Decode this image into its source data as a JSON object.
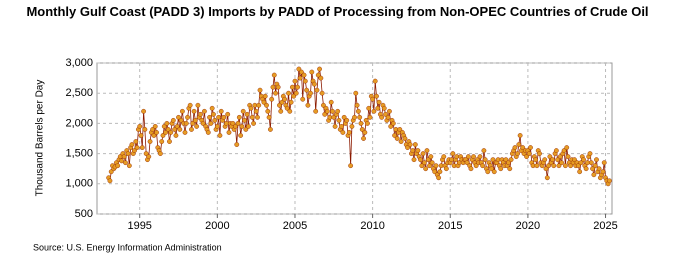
{
  "chart_data": {
    "type": "line",
    "title": "Monthly Gulf Coast (PADD 3) Imports by PADD of Processing from Non-OPEC Countries of Crude Oil",
    "y_label": "Thousand Barrels per Day",
    "source": "Source: U.S. Energy Information Administration",
    "color": "#e69c24",
    "line_color": "#8b1a00",
    "grid": true,
    "xlim": [
      "1992-04",
      "2025-06"
    ],
    "xticks": [
      "1995",
      "2000",
      "2005",
      "2010",
      "2015",
      "2020",
      "2025"
    ],
    "ylim": [
      500,
      3000
    ],
    "yticks": [
      500,
      {
        "value": 1000,
        "label": "1,000"
      },
      {
        "value": 1500,
        "label": "1,500"
      },
      {
        "value": 2000,
        "label": "2,000"
      },
      {
        "value": 2500,
        "label": "2,500"
      },
      {
        "value": 3000,
        "label": "3,000"
      }
    ],
    "x": [
      "1993-01",
      "1993-02",
      "1993-03",
      "1993-04",
      "1993-05",
      "1993-06",
      "1993-07",
      "1993-08",
      "1993-09",
      "1993-10",
      "1993-11",
      "1993-12",
      "1994-01",
      "1994-02",
      "1994-03",
      "1994-04",
      "1994-05",
      "1994-06",
      "1994-07",
      "1994-08",
      "1994-09",
      "1994-10",
      "1994-11",
      "1994-12",
      "1995-01",
      "1995-02",
      "1995-03",
      "1995-04",
      "1995-05",
      "1995-06",
      "1995-07",
      "1995-08",
      "1995-09",
      "1995-10",
      "1995-11",
      "1995-12",
      "1996-01",
      "1996-02",
      "1996-03",
      "1996-04",
      "1996-05",
      "1996-06",
      "1996-07",
      "1996-08",
      "1996-09",
      "1996-10",
      "1996-11",
      "1996-12",
      "1997-01",
      "1997-02",
      "1997-03",
      "1997-04",
      "1997-05",
      "1997-06",
      "1997-07",
      "1997-08",
      "1997-09",
      "1997-10",
      "1997-11",
      "1997-12",
      "1998-01",
      "1998-02",
      "1998-03",
      "1998-04",
      "1998-05",
      "1998-06",
      "1998-07",
      "1998-08",
      "1998-09",
      "1998-10",
      "1998-11",
      "1998-12",
      "1999-01",
      "1999-02",
      "1999-03",
      "1999-04",
      "1999-05",
      "1999-06",
      "1999-07",
      "1999-08",
      "1999-09",
      "1999-10",
      "1999-11",
      "1999-12",
      "2000-01",
      "2000-02",
      "2000-03",
      "2000-04",
      "2000-05",
      "2000-06",
      "2000-07",
      "2000-08",
      "2000-09",
      "2000-10",
      "2000-11",
      "2000-12",
      "2001-01",
      "2001-02",
      "2001-03",
      "2001-04",
      "2001-05",
      "2001-06",
      "2001-07",
      "2001-08",
      "2001-09",
      "2001-10",
      "2001-11",
      "2001-12",
      "2002-01",
      "2002-02",
      "2002-03",
      "2002-04",
      "2002-05",
      "2002-06",
      "2002-07",
      "2002-08",
      "2002-09",
      "2002-10",
      "2002-11",
      "2002-12",
      "2003-01",
      "2003-02",
      "2003-03",
      "2003-04",
      "2003-05",
      "2003-06",
      "2003-07",
      "2003-08",
      "2003-09",
      "2003-10",
      "2003-11",
      "2003-12",
      "2004-01",
      "2004-02",
      "2004-03",
      "2004-04",
      "2004-05",
      "2004-06",
      "2004-07",
      "2004-08",
      "2004-09",
      "2004-10",
      "2004-11",
      "2004-12",
      "2005-01",
      "2005-02",
      "2005-03",
      "2005-04",
      "2005-05",
      "2005-06",
      "2005-07",
      "2005-08",
      "2005-09",
      "2005-10",
      "2005-11",
      "2005-12",
      "2006-01",
      "2006-02",
      "2006-03",
      "2006-04",
      "2006-05",
      "2006-06",
      "2006-07",
      "2006-08",
      "2006-09",
      "2006-10",
      "2006-11",
      "2006-12",
      "2007-01",
      "2007-02",
      "2007-03",
      "2007-04",
      "2007-05",
      "2007-06",
      "2007-07",
      "2007-08",
      "2007-09",
      "2007-10",
      "2007-11",
      "2007-12",
      "2008-01",
      "2008-02",
      "2008-03",
      "2008-04",
      "2008-05",
      "2008-06",
      "2008-07",
      "2008-08",
      "2008-09",
      "2008-10",
      "2008-11",
      "2008-12",
      "2009-01",
      "2009-02",
      "2009-03",
      "2009-04",
      "2009-05",
      "2009-06",
      "2009-07",
      "2009-08",
      "2009-09",
      "2009-10",
      "2009-11",
      "2009-12",
      "2010-01",
      "2010-02",
      "2010-03",
      "2010-04",
      "2010-05",
      "2010-06",
      "2010-07",
      "2010-08",
      "2010-09",
      "2010-10",
      "2010-11",
      "2010-12",
      "2011-01",
      "2011-02",
      "2011-03",
      "2011-04",
      "2011-05",
      "2011-06",
      "2011-07",
      "2011-08",
      "2011-09",
      "2011-10",
      "2011-11",
      "2011-12",
      "2012-01",
      "2012-02",
      "2012-03",
      "2012-04",
      "2012-05",
      "2012-06",
      "2012-07",
      "2012-08",
      "2012-09",
      "2012-10",
      "2012-11",
      "2012-12",
      "2013-01",
      "2013-02",
      "2013-03",
      "2013-04",
      "2013-05",
      "2013-06",
      "2013-07",
      "2013-08",
      "2013-09",
      "2013-10",
      "2013-11",
      "2013-12",
      "2014-01",
      "2014-02",
      "2014-03",
      "2014-04",
      "2014-05",
      "2014-06",
      "2014-07",
      "2014-08",
      "2014-09",
      "2014-10",
      "2014-11",
      "2014-12",
      "2015-01",
      "2015-02",
      "2015-03",
      "2015-04",
      "2015-05",
      "2015-06",
      "2015-07",
      "2015-08",
      "2015-09",
      "2015-10",
      "2015-11",
      "2015-12",
      "2016-01",
      "2016-02",
      "2016-03",
      "2016-04",
      "2016-05",
      "2016-06",
      "2016-07",
      "2016-08",
      "2016-09",
      "2016-10",
      "2016-11",
      "2016-12",
      "2017-01",
      "2017-02",
      "2017-03",
      "2017-04",
      "2017-05",
      "2017-06",
      "2017-07",
      "2017-08",
      "2017-09",
      "2017-10",
      "2017-11",
      "2017-12",
      "2018-01",
      "2018-02",
      "2018-03",
      "2018-04",
      "2018-05",
      "2018-06",
      "2018-07",
      "2018-08",
      "2018-09",
      "2018-10",
      "2018-11",
      "2018-12",
      "2019-01",
      "2019-02",
      "2019-03",
      "2019-04",
      "2019-05",
      "2019-06",
      "2019-07",
      "2019-08",
      "2019-09",
      "2019-10",
      "2019-11",
      "2019-12",
      "2020-01",
      "2020-02",
      "2020-03",
      "2020-04",
      "2020-05",
      "2020-06",
      "2020-07",
      "2020-08",
      "2020-09",
      "2020-10",
      "2020-11",
      "2020-12",
      "2021-01",
      "2021-02",
      "2021-03",
      "2021-04",
      "2021-05",
      "2021-06",
      "2021-07",
      "2021-08",
      "2021-09",
      "2021-10",
      "2021-11",
      "2021-12",
      "2022-01",
      "2022-02",
      "2022-03",
      "2022-04",
      "2022-05",
      "2022-06",
      "2022-07",
      "2022-08",
      "2022-09",
      "2022-10",
      "2022-11",
      "2022-12",
      "2023-01",
      "2023-02",
      "2023-03",
      "2023-04",
      "2023-05",
      "2023-06",
      "2023-07",
      "2023-08",
      "2023-09",
      "2023-10",
      "2023-11",
      "2023-12",
      "2024-01",
      "2024-02",
      "2024-03",
      "2024-04",
      "2024-05",
      "2024-06",
      "2024-07",
      "2024-08",
      "2024-09",
      "2024-10",
      "2024-11",
      "2024-12",
      "2025-01",
      "2025-02",
      "2025-03",
      "2025-04"
    ],
    "values": [
      1100,
      1050,
      1200,
      1300,
      1250,
      1280,
      1350,
      1300,
      1400,
      1450,
      1380,
      1500,
      1450,
      1350,
      1550,
      1500,
      1300,
      1600,
      1650,
      1500,
      1550,
      1700,
      1600,
      1900,
      1950,
      1800,
      1600,
      2200,
      1900,
      1500,
      1400,
      1450,
      1700,
      1850,
      1900,
      1800,
      1950,
      1850,
      1600,
      1550,
      1500,
      1700,
      1800,
      1950,
      1850,
      2000,
      1900,
      1700,
      1850,
      2000,
      2050,
      1900,
      1800,
      1950,
      2100,
      1900,
      2050,
      2200,
      2000,
      1850,
      2000,
      2100,
      2250,
      2300,
      1900,
      2000,
      2200,
      2050,
      1950,
      2300,
      2100,
      2150,
      2050,
      2000,
      2200,
      1950,
      1900,
      1850,
      2100,
      2000,
      2250,
      2150,
      2050,
      1900,
      1950,
      2100,
      1800,
      2200,
      2050,
      2100,
      1950,
      2000,
      2150,
      1850,
      2000,
      1950,
      2000,
      1900,
      1950,
      1650,
      2000,
      2100,
      1800,
      1950,
      2200,
      2050,
      1900,
      2150,
      1950,
      2300,
      2250,
      2100,
      2000,
      2300,
      2200,
      2100,
      2300,
      2550,
      2450,
      2400,
      2350,
      2450,
      2300,
      2200,
      2100,
      1900,
      2400,
      2600,
      2800,
      2500,
      2650,
      2600,
      2300,
      2200,
      2350,
      2450,
      2400,
      2300,
      2250,
      2500,
      2200,
      2350,
      2600,
      2450,
      2700,
      2500,
      2600,
      2900,
      2750,
      2850,
      2400,
      2800,
      2700,
      2550,
      2300,
      2450,
      2500,
      2850,
      2700,
      2650,
      2200,
      2550,
      2800,
      2900,
      2750,
      2500,
      2300,
      2150,
      2250,
      2200,
      2050,
      2100,
      2350,
      2200,
      2100,
      1950,
      2150,
      2200,
      2050,
      1900,
      1950,
      1850,
      2100,
      2000,
      2050,
      1800,
      1850,
      1300,
      1950,
      2050,
      2100,
      2500,
      2300,
      2200,
      2100,
      2000,
      1900,
      1750,
      1850,
      2050,
      2000,
      2250,
      2100,
      2450,
      2400,
      2200,
      2700,
      2450,
      2250,
      2350,
      2150,
      2100,
      2300,
      2250,
      2150,
      2050,
      2100,
      2200,
      1950,
      2050,
      2000,
      1800,
      1900,
      1750,
      1850,
      1900,
      1700,
      1850,
      1800,
      1750,
      1650,
      1600,
      1700,
      1650,
      1500,
      1550,
      1400,
      1650,
      1500,
      1550,
      1450,
      1400,
      1300,
      1500,
      1350,
      1250,
      1550,
      1400,
      1300,
      1450,
      1350,
      1250,
      1200,
      1300,
      1150,
      1100,
      1200,
      1300,
      1400,
      1450,
      1300,
      1250,
      1350,
      1400,
      1350,
      1400,
      1500,
      1300,
      1400,
      1450,
      1300,
      1350,
      1450,
      1400,
      1350,
      1400,
      1400,
      1350,
      1450,
      1300,
      1250,
      1400,
      1450,
      1350,
      1300,
      1400,
      1350,
      1450,
      1350,
      1300,
      1550,
      1400,
      1250,
      1200,
      1350,
      1300,
      1250,
      1400,
      1200,
      1350,
      1350,
      1400,
      1300,
      1250,
      1400,
      1350,
      1300,
      1400,
      1300,
      1350,
      1250,
      1400,
      1500,
      1550,
      1600,
      1450,
      1500,
      1650,
      1800,
      1550,
      1600,
      1500,
      1550,
      1450,
      1550,
      1500,
      1600,
      1350,
      1300,
      1450,
      1400,
      1300,
      1550,
      1500,
      1350,
      1300,
      1350,
      1400,
      1250,
      1100,
      1300,
      1450,
      1350,
      1400,
      1300,
      1500,
      1550,
      1400,
      1300,
      1450,
      1350,
      1500,
      1550,
      1300,
      1600,
      1450,
      1350,
      1300,
      1400,
      1350,
      1400,
      1300,
      1350,
      1300,
      1200,
      1350,
      1450,
      1400,
      1300,
      1250,
      1350,
      1450,
      1500,
      1350,
      1250,
      1150,
      1300,
      1400,
      1200,
      1250,
      1100,
      1150,
      1200,
      1350,
      1100,
      1050,
      1000,
      1050
    ]
  }
}
